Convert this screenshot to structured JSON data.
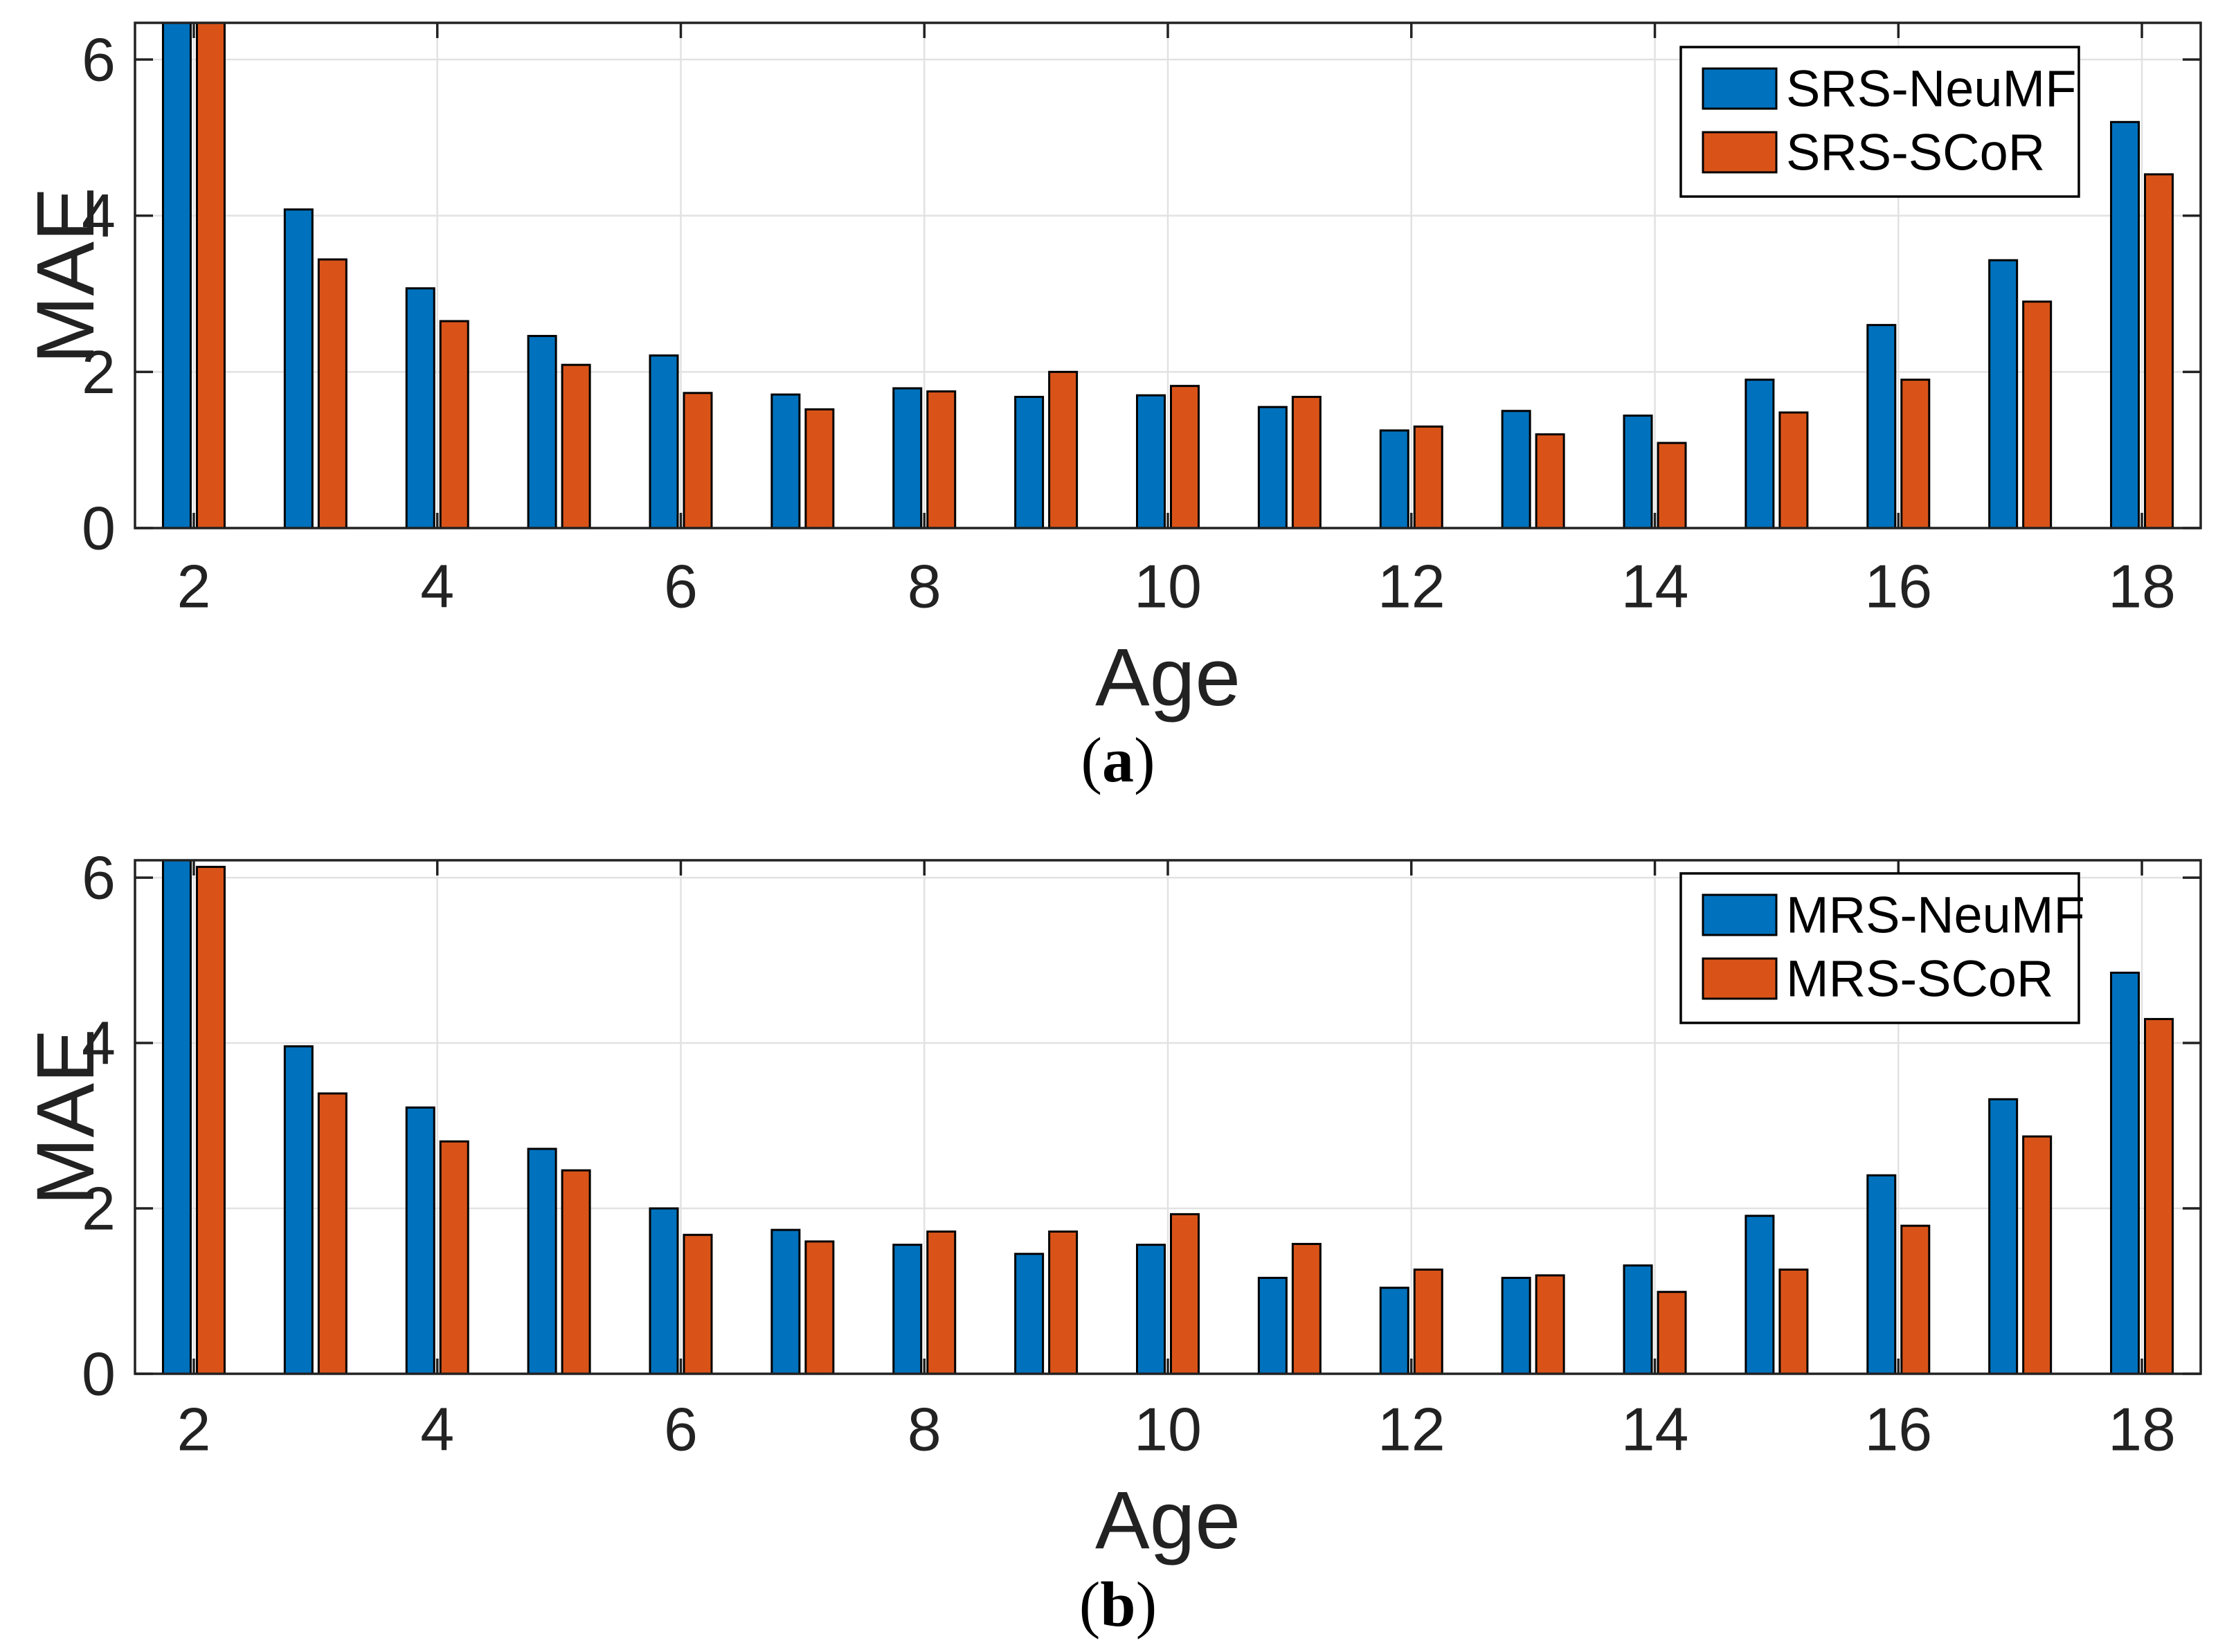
{
  "figure": {
    "background": "#ffffff",
    "description": "Two stacked grouped bar charts comparing MAE by Age for NeuMF vs SCoR recommenders"
  },
  "colors": {
    "series_blue": "#0072BD",
    "series_orange": "#D95319",
    "bar_edge": "#000000",
    "grid": "#E2E2E2",
    "axis": "#222222",
    "text": "#222222",
    "legend_border": "#000000",
    "legend_background": "#ffffff"
  },
  "chart_data": [
    {
      "id": "a",
      "type": "bar",
      "title": "",
      "xlabel": "Age",
      "ylabel": "MAE",
      "caption": "(a)",
      "caption_letter": "a",
      "x": [
        2,
        3,
        4,
        5,
        6,
        7,
        8,
        9,
        10,
        11,
        12,
        13,
        14,
        15,
        16,
        17,
        18
      ],
      "xticks": [
        2,
        4,
        6,
        8,
        10,
        12,
        14,
        16,
        18
      ],
      "xtick_labels": [
        "2",
        "4",
        "6",
        "8",
        "10",
        "12",
        "14",
        "16",
        "18"
      ],
      "yticks": [
        0,
        2,
        4,
        6
      ],
      "ytick_labels": [
        "0",
        "2",
        "4",
        "6"
      ],
      "ylim": [
        0,
        6.47
      ],
      "grid": true,
      "legend_position": "northeast",
      "note": "age-2 bars exceed the y-axis upper limit and are clipped at the top of the axes",
      "series": [
        {
          "name": "SRS-NeuMF",
          "color": "#0072BD",
          "values": [
            6.6,
            4.08,
            3.07,
            2.46,
            2.21,
            1.71,
            1.79,
            1.68,
            1.7,
            1.55,
            1.25,
            1.5,
            1.44,
            1.9,
            2.6,
            3.43,
            5.2
          ]
        },
        {
          "name": "SRS-SCoR",
          "color": "#D95319",
          "values": [
            6.6,
            3.44,
            2.65,
            2.09,
            1.73,
            1.52,
            1.75,
            2.0,
            1.82,
            1.68,
            1.3,
            1.2,
            1.09,
            1.48,
            1.9,
            2.9,
            4.53
          ]
        }
      ]
    },
    {
      "id": "b",
      "type": "bar",
      "title": "",
      "xlabel": "Age",
      "ylabel": "MAE",
      "caption": "(b)",
      "caption_letter": "b",
      "x": [
        2,
        3,
        4,
        5,
        6,
        7,
        8,
        9,
        10,
        11,
        12,
        13,
        14,
        15,
        16,
        17,
        18
      ],
      "xticks": [
        2,
        4,
        6,
        8,
        10,
        12,
        14,
        16,
        18
      ],
      "xtick_labels": [
        "2",
        "4",
        "6",
        "8",
        "10",
        "12",
        "14",
        "16",
        "18"
      ],
      "yticks": [
        0,
        2,
        4,
        6
      ],
      "ytick_labels": [
        "0",
        "2",
        "4",
        "6"
      ],
      "ylim": [
        0,
        6.21
      ],
      "grid": true,
      "legend_position": "northeast",
      "note": "age-2 blue bar exceeds the y-axis upper limit and is clipped at the top of the axes",
      "series": [
        {
          "name": "MRS-NeuMF",
          "color": "#0072BD",
          "values": [
            6.4,
            3.96,
            3.22,
            2.72,
            2.0,
            1.74,
            1.56,
            1.45,
            1.56,
            1.16,
            1.04,
            1.16,
            1.31,
            1.91,
            2.4,
            3.32,
            4.85
          ]
        },
        {
          "name": "MRS-SCoR",
          "color": "#D95319",
          "values": [
            6.13,
            3.39,
            2.81,
            2.46,
            1.68,
            1.6,
            1.72,
            1.72,
            1.93,
            1.57,
            1.26,
            1.19,
            0.99,
            1.26,
            1.79,
            2.87,
            4.29
          ]
        }
      ]
    }
  ]
}
